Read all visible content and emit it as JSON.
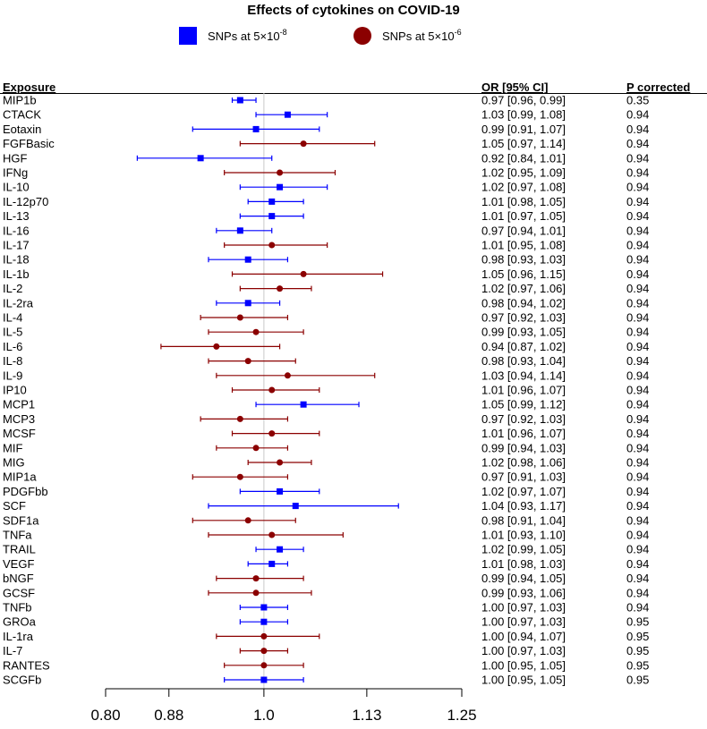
{
  "chart_data": {
    "type": "scatter",
    "subtype": "forest-plot",
    "title": "Effects of cytokines on COVID-19",
    "legend": [
      {
        "name": "SNPs at 5×10",
        "exp": "-8",
        "color": "#0000ff",
        "shape": "square"
      },
      {
        "name": "SNPs at 5×10",
        "exp": "-6",
        "color": "#8b0000",
        "shape": "circle"
      }
    ],
    "columns": {
      "exposure": "Exposure",
      "or": "OR [95% CI]",
      "p": "P corrected"
    },
    "xlim": [
      0.8,
      1.25
    ],
    "xticks": [
      {
        "value": 0.8,
        "label": "0.80"
      },
      {
        "value": 0.88,
        "label": "0.88"
      },
      {
        "value": 1.0,
        "label": "1.0"
      },
      {
        "value": 1.13,
        "label": "1.13"
      },
      {
        "value": 1.25,
        "label": "1.25"
      }
    ],
    "reference_line": 1.0,
    "rows": [
      {
        "exposure": "MIP1b",
        "or": 0.97,
        "lo": 0.96,
        "hi": 0.99,
        "text": "0.97 [0.96, 0.99]",
        "p": "0.35",
        "series": 0
      },
      {
        "exposure": "CTACK",
        "or": 1.03,
        "lo": 0.99,
        "hi": 1.08,
        "text": "1.03 [0.99, 1.08]",
        "p": "0.94",
        "series": 0
      },
      {
        "exposure": "Eotaxin",
        "or": 0.99,
        "lo": 0.91,
        "hi": 1.07,
        "text": "0.99 [0.91, 1.07]",
        "p": "0.94",
        "series": 0
      },
      {
        "exposure": "FGFBasic",
        "or": 1.05,
        "lo": 0.97,
        "hi": 1.14,
        "text": "1.05 [0.97, 1.14]",
        "p": "0.94",
        "series": 1
      },
      {
        "exposure": "HGF",
        "or": 0.92,
        "lo": 0.84,
        "hi": 1.01,
        "text": "0.92 [0.84, 1.01]",
        "p": "0.94",
        "series": 0
      },
      {
        "exposure": "IFNg",
        "or": 1.02,
        "lo": 0.95,
        "hi": 1.09,
        "text": "1.02 [0.95, 1.09]",
        "p": "0.94",
        "series": 1
      },
      {
        "exposure": "IL-10",
        "or": 1.02,
        "lo": 0.97,
        "hi": 1.08,
        "text": "1.02 [0.97, 1.08]",
        "p": "0.94",
        "series": 0
      },
      {
        "exposure": "IL-12p70",
        "or": 1.01,
        "lo": 0.98,
        "hi": 1.05,
        "text": "1.01 [0.98, 1.05]",
        "p": "0.94",
        "series": 0
      },
      {
        "exposure": "IL-13",
        "or": 1.01,
        "lo": 0.97,
        "hi": 1.05,
        "text": "1.01 [0.97, 1.05]",
        "p": "0.94",
        "series": 0
      },
      {
        "exposure": "IL-16",
        "or": 0.97,
        "lo": 0.94,
        "hi": 1.01,
        "text": "0.97 [0.94, 1.01]",
        "p": "0.94",
        "series": 0
      },
      {
        "exposure": "IL-17",
        "or": 1.01,
        "lo": 0.95,
        "hi": 1.08,
        "text": "1.01 [0.95, 1.08]",
        "p": "0.94",
        "series": 1
      },
      {
        "exposure": "IL-18",
        "or": 0.98,
        "lo": 0.93,
        "hi": 1.03,
        "text": "0.98 [0.93, 1.03]",
        "p": "0.94",
        "series": 0
      },
      {
        "exposure": "IL-1b",
        "or": 1.05,
        "lo": 0.96,
        "hi": 1.15,
        "text": "1.05 [0.96, 1.15]",
        "p": "0.94",
        "series": 1
      },
      {
        "exposure": "IL-2",
        "or": 1.02,
        "lo": 0.97,
        "hi": 1.06,
        "text": "1.02 [0.97, 1.06]",
        "p": "0.94",
        "series": 1
      },
      {
        "exposure": "IL-2ra",
        "or": 0.98,
        "lo": 0.94,
        "hi": 1.02,
        "text": "0.98 [0.94, 1.02]",
        "p": "0.94",
        "series": 0
      },
      {
        "exposure": "IL-4",
        "or": 0.97,
        "lo": 0.92,
        "hi": 1.03,
        "text": "0.97 [0.92, 1.03]",
        "p": "0.94",
        "series": 1
      },
      {
        "exposure": "IL-5",
        "or": 0.99,
        "lo": 0.93,
        "hi": 1.05,
        "text": "0.99 [0.93, 1.05]",
        "p": "0.94",
        "series": 1
      },
      {
        "exposure": "IL-6",
        "or": 0.94,
        "lo": 0.87,
        "hi": 1.02,
        "text": "0.94 [0.87, 1.02]",
        "p": "0.94",
        "series": 1
      },
      {
        "exposure": "IL-8",
        "or": 0.98,
        "lo": 0.93,
        "hi": 1.04,
        "text": "0.98 [0.93, 1.04]",
        "p": "0.94",
        "series": 1
      },
      {
        "exposure": "IL-9",
        "or": 1.03,
        "lo": 0.94,
        "hi": 1.14,
        "text": "1.03 [0.94, 1.14]",
        "p": "0.94",
        "series": 1
      },
      {
        "exposure": "IP10",
        "or": 1.01,
        "lo": 0.96,
        "hi": 1.07,
        "text": "1.01 [0.96, 1.07]",
        "p": "0.94",
        "series": 1
      },
      {
        "exposure": "MCP1",
        "or": 1.05,
        "lo": 0.99,
        "hi": 1.12,
        "text": "1.05 [0.99, 1.12]",
        "p": "0.94",
        "series": 0
      },
      {
        "exposure": "MCP3",
        "or": 0.97,
        "lo": 0.92,
        "hi": 1.03,
        "text": "0.97 [0.92, 1.03]",
        "p": "0.94",
        "series": 1
      },
      {
        "exposure": "MCSF",
        "or": 1.01,
        "lo": 0.96,
        "hi": 1.07,
        "text": "1.01 [0.96, 1.07]",
        "p": "0.94",
        "series": 1
      },
      {
        "exposure": "MIF",
        "or": 0.99,
        "lo": 0.94,
        "hi": 1.03,
        "text": "0.99 [0.94, 1.03]",
        "p": "0.94",
        "series": 1
      },
      {
        "exposure": "MIG",
        "or": 1.02,
        "lo": 0.98,
        "hi": 1.06,
        "text": "1.02 [0.98, 1.06]",
        "p": "0.94",
        "series": 1
      },
      {
        "exposure": "MIP1a",
        "or": 0.97,
        "lo": 0.91,
        "hi": 1.03,
        "text": "0.97 [0.91, 1.03]",
        "p": "0.94",
        "series": 1
      },
      {
        "exposure": "PDGFbb",
        "or": 1.02,
        "lo": 0.97,
        "hi": 1.07,
        "text": "1.02 [0.97, 1.07]",
        "p": "0.94",
        "series": 0
      },
      {
        "exposure": "SCF",
        "or": 1.04,
        "lo": 0.93,
        "hi": 1.17,
        "text": "1.04 [0.93, 1.17]",
        "p": "0.94",
        "series": 0
      },
      {
        "exposure": "SDF1a",
        "or": 0.98,
        "lo": 0.91,
        "hi": 1.04,
        "text": "0.98 [0.91, 1.04]",
        "p": "0.94",
        "series": 1
      },
      {
        "exposure": "TNFa",
        "or": 1.01,
        "lo": 0.93,
        "hi": 1.1,
        "text": "1.01 [0.93, 1.10]",
        "p": "0.94",
        "series": 1
      },
      {
        "exposure": "TRAIL",
        "or": 1.02,
        "lo": 0.99,
        "hi": 1.05,
        "text": "1.02 [0.99, 1.05]",
        "p": "0.94",
        "series": 0
      },
      {
        "exposure": "VEGF",
        "or": 1.01,
        "lo": 0.98,
        "hi": 1.03,
        "text": "1.01 [0.98, 1.03]",
        "p": "0.94",
        "series": 0
      },
      {
        "exposure": "bNGF",
        "or": 0.99,
        "lo": 0.94,
        "hi": 1.05,
        "text": "0.99 [0.94, 1.05]",
        "p": "0.94",
        "series": 1
      },
      {
        "exposure": "GCSF",
        "or": 0.99,
        "lo": 0.93,
        "hi": 1.06,
        "text": "0.99 [0.93, 1.06]",
        "p": "0.94",
        "series": 1
      },
      {
        "exposure": "TNFb",
        "or": 1.0,
        "lo": 0.97,
        "hi": 1.03,
        "text": "1.00 [0.97, 1.03]",
        "p": "0.94",
        "series": 0
      },
      {
        "exposure": "GROa",
        "or": 1.0,
        "lo": 0.97,
        "hi": 1.03,
        "text": "1.00 [0.97, 1.03]",
        "p": "0.95",
        "series": 0
      },
      {
        "exposure": "IL-1ra",
        "or": 1.0,
        "lo": 0.94,
        "hi": 1.07,
        "text": "1.00 [0.94, 1.07]",
        "p": "0.95",
        "series": 1
      },
      {
        "exposure": "IL-7",
        "or": 1.0,
        "lo": 0.97,
        "hi": 1.03,
        "text": "1.00 [0.97, 1.03]",
        "p": "0.95",
        "series": 1
      },
      {
        "exposure": "RANTES",
        "or": 1.0,
        "lo": 0.95,
        "hi": 1.05,
        "text": "1.00 [0.95, 1.05]",
        "p": "0.95",
        "series": 1
      },
      {
        "exposure": "SCGFb",
        "or": 1.0,
        "lo": 0.95,
        "hi": 1.05,
        "text": "1.00 [0.95, 1.05]",
        "p": "0.95",
        "series": 0
      }
    ]
  }
}
